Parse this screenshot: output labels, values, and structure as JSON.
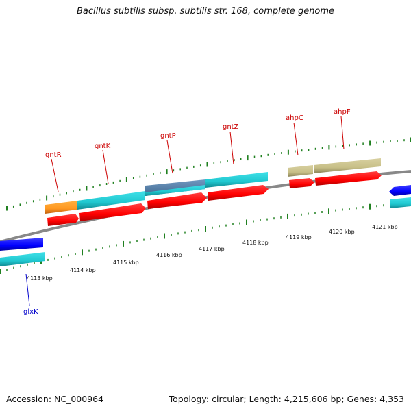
{
  "title": "Bacillus subtilis subsp. subtilis str. 168, complete genome",
  "footer": {
    "accession": "Accession: NC_000964",
    "summary": "Topology: circular; Length: 4,215,606 bp; Genes: 4,353"
  },
  "scale": {
    "labels": [
      "4113 kbp",
      "4114 kbp",
      "4115 kbp",
      "4116 kbp",
      "4117 kbp",
      "4118 kbp",
      "4119 kbp",
      "4120 kbp",
      "4121 kbp"
    ]
  },
  "genes": [
    {
      "name": "gntR",
      "strand": "forward",
      "color": "#cc0000"
    },
    {
      "name": "gntK",
      "strand": "forward",
      "color": "#cc0000"
    },
    {
      "name": "gntP",
      "strand": "forward",
      "color": "#cc0000"
    },
    {
      "name": "gntZ",
      "strand": "forward",
      "color": "#cc0000"
    },
    {
      "name": "ahpC",
      "strand": "forward",
      "color": "#cc0000"
    },
    {
      "name": "ahpF",
      "strand": "forward",
      "color": "#cc0000"
    },
    {
      "name": "glxK",
      "strand": "reverse",
      "color": "#0000cc"
    }
  ],
  "colors": {
    "cds": "#ff0000",
    "cyan": "#20c8d0",
    "orange": "#ff9820",
    "khaki": "#c8c088",
    "steel": "#5080a8",
    "blue": "#0000ff",
    "backbone": "#888888",
    "tick": "#208020"
  }
}
